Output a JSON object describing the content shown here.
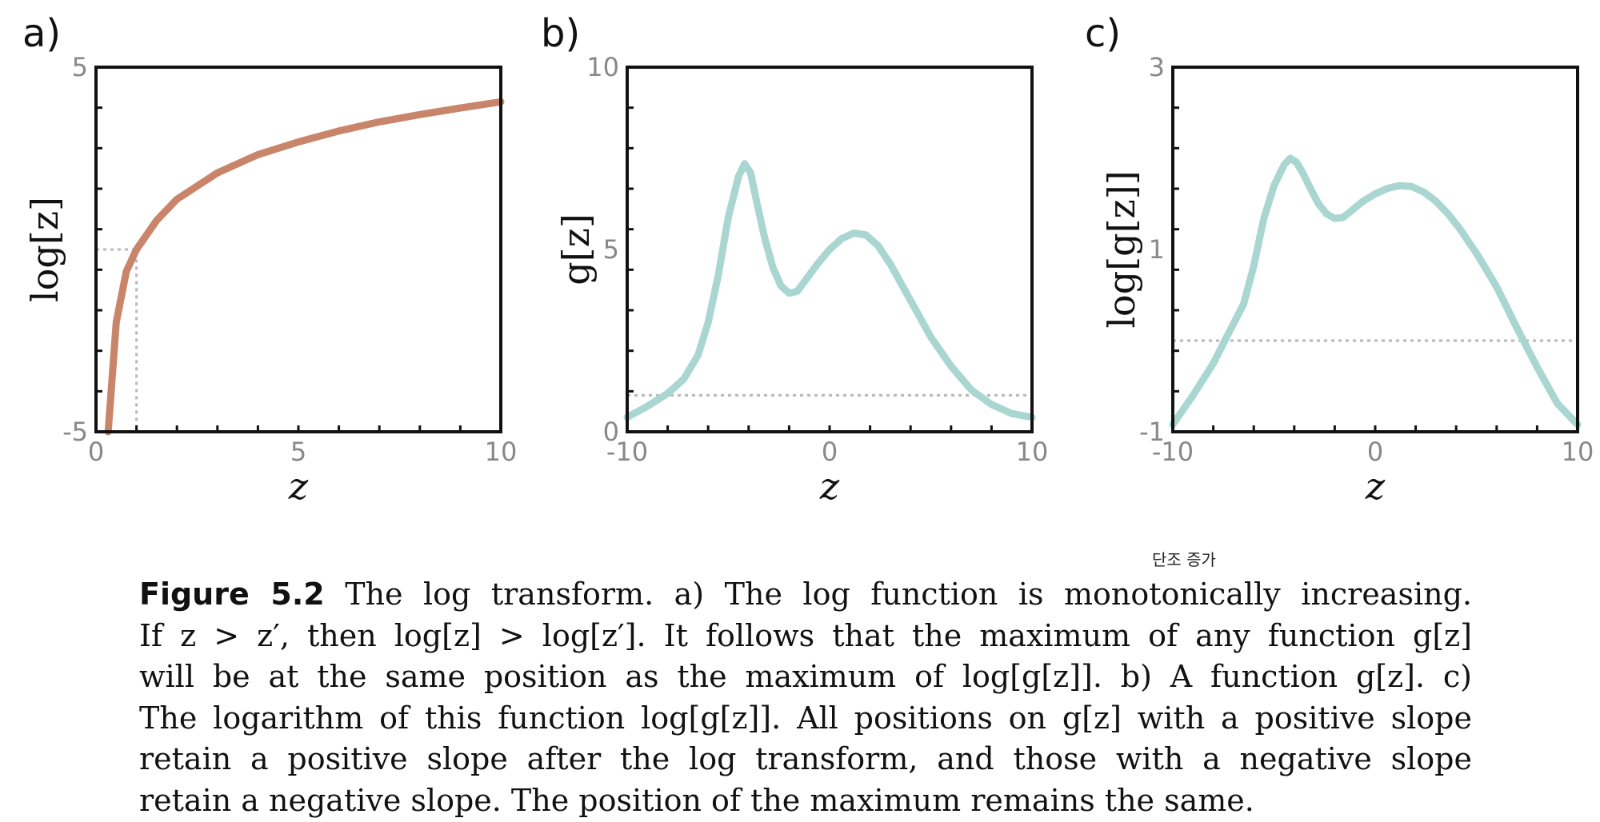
{
  "chart_data": [
    {
      "panel": "a)",
      "type": "line",
      "xlabel": "z",
      "ylabel": "log[z]",
      "xlim": [
        0,
        10
      ],
      "ylim": [
        -5,
        5
      ],
      "xticks": [
        "0",
        "5",
        "10"
      ],
      "yticks": [
        "-5",
        "5"
      ],
      "color": "#c9856a",
      "series": [
        {
          "x": [
            0.3,
            0.5,
            0.75,
            1.0,
            1.5,
            2,
            3,
            4,
            5,
            6,
            7,
            8,
            9,
            10
          ],
          "y": [
            -5.0,
            -2.0,
            -0.6,
            0.0,
            0.8,
            1.38,
            2.1,
            2.6,
            2.95,
            3.25,
            3.5,
            3.7,
            3.88,
            4.05
          ]
        }
      ],
      "guides": {
        "x": 1.0,
        "y": 0.0
      }
    },
    {
      "panel": "b)",
      "type": "line",
      "xlabel": "z",
      "ylabel": "g[z]",
      "xlim": [
        -10,
        10
      ],
      "ylim": [
        0,
        10
      ],
      "xticks": [
        "-10",
        "0",
        "10"
      ],
      "yticks": [
        "0",
        "5",
        "10"
      ],
      "color": "#a9d6d1",
      "series": [
        {
          "x": [
            -10,
            -9,
            -8,
            -7.2,
            -6.5,
            -6,
            -5.5,
            -5,
            -4.5,
            -4.2,
            -3.9,
            -3.6,
            -3.2,
            -2.8,
            -2.4,
            -2.0,
            -1.6,
            -1.2,
            -0.6,
            0,
            0.6,
            1.2,
            1.8,
            2.4,
            3.0,
            3.6,
            4.2,
            5.0,
            6.0,
            7.0,
            8.0,
            9.0,
            10
          ],
          "y": [
            0.4,
            0.7,
            1.05,
            1.45,
            2.1,
            3.0,
            4.3,
            5.9,
            7.0,
            7.35,
            7.1,
            6.3,
            5.3,
            4.5,
            4.0,
            3.8,
            3.85,
            4.15,
            4.6,
            5.0,
            5.3,
            5.45,
            5.4,
            5.1,
            4.6,
            4.0,
            3.4,
            2.6,
            1.8,
            1.15,
            0.75,
            0.5,
            0.4
          ]
        }
      ],
      "guides": {
        "y": 1.0
      }
    },
    {
      "panel": "c)",
      "type": "line",
      "xlabel": "z",
      "ylabel": "log[g[z]]",
      "xlim": [
        -10,
        10
      ],
      "ylim": [
        -1,
        3
      ],
      "xticks": [
        "-10",
        "0",
        "10"
      ],
      "yticks": [
        "-1",
        "1",
        "3"
      ],
      "color": "#a9d6d1",
      "series": [
        {
          "x": [
            -10,
            -9,
            -8,
            -7.2,
            -6.5,
            -6,
            -5.5,
            -5,
            -4.5,
            -4.2,
            -3.9,
            -3.6,
            -3.2,
            -2.8,
            -2.4,
            -2.0,
            -1.6,
            -1.2,
            -0.6,
            0,
            0.6,
            1.2,
            1.8,
            2.4,
            3.0,
            3.6,
            4.2,
            5.0,
            6.0,
            7.0,
            8.0,
            9.0,
            10
          ],
          "y": [
            -0.92,
            -0.6,
            -0.25,
            0.1,
            0.4,
            0.82,
            1.34,
            1.7,
            1.93,
            2.0,
            1.96,
            1.85,
            1.67,
            1.5,
            1.39,
            1.34,
            1.35,
            1.42,
            1.53,
            1.61,
            1.67,
            1.7,
            1.69,
            1.63,
            1.53,
            1.39,
            1.22,
            0.96,
            0.59,
            0.14,
            -0.29,
            -0.69,
            -0.92
          ]
        }
      ],
      "guides": {
        "y": 0.0
      }
    }
  ],
  "caption": {
    "figure_number": "Figure 5.2",
    "lines": [
      "The log transform. a) The log function is monotonically increasing.",
      "If z > z′, then log[z] > log[z′]. It follows that the maximum of any function g[z]",
      "will be at the same position as the maximum of log[g[z]]. b) A function g[z]. c)",
      "The logarithm of this function log[g[z]]. All positions on g[z] with a positive slope",
      "retain a positive slope after the log transform, and those with a negative slope",
      "retain a negative slope. The position of the maximum remains the same."
    ]
  },
  "annotation": "단조 증가"
}
